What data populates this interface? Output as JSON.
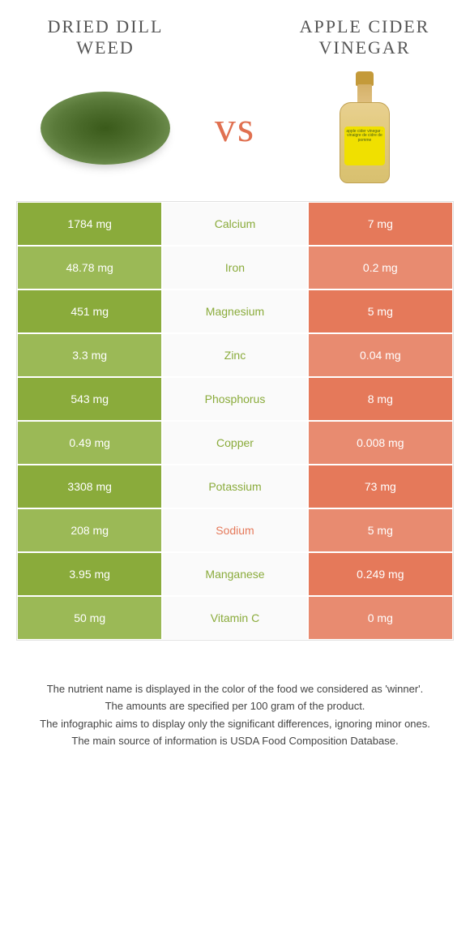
{
  "header": {
    "left_title": "Dried dill weed",
    "right_title": "Apple cider vinegar"
  },
  "vs_label": "vs",
  "bottle_label_text": "apple cider\nvinegar · vinaigre de\ncidre de pomme",
  "colors": {
    "left_odd": "#8aab3b",
    "left_even": "#9bb956",
    "right_odd": "#e5795a",
    "right_even": "#e88b70",
    "mid_bg": "#fafafa",
    "vs": "#e07050"
  },
  "table": {
    "rows": [
      {
        "left": "1784 mg",
        "nutrient": "Calcium",
        "right": "7 mg",
        "winner": "left"
      },
      {
        "left": "48.78 mg",
        "nutrient": "Iron",
        "right": "0.2 mg",
        "winner": "left"
      },
      {
        "left": "451 mg",
        "nutrient": "Magnesium",
        "right": "5 mg",
        "winner": "left"
      },
      {
        "left": "3.3 mg",
        "nutrient": "Zinc",
        "right": "0.04 mg",
        "winner": "left"
      },
      {
        "left": "543 mg",
        "nutrient": "Phosphorus",
        "right": "8 mg",
        "winner": "left"
      },
      {
        "left": "0.49 mg",
        "nutrient": "Copper",
        "right": "0.008 mg",
        "winner": "left"
      },
      {
        "left": "3308 mg",
        "nutrient": "Potassium",
        "right": "73 mg",
        "winner": "left"
      },
      {
        "left": "208 mg",
        "nutrient": "Sodium",
        "right": "5 mg",
        "winner": "right"
      },
      {
        "left": "3.95 mg",
        "nutrient": "Manganese",
        "right": "0.249 mg",
        "winner": "left"
      },
      {
        "left": "50 mg",
        "nutrient": "Vitamin C",
        "right": "0 mg",
        "winner": "left"
      }
    ]
  },
  "footer": {
    "line1": "The nutrient name is displayed in the color of the food we considered as 'winner'.",
    "line2": "The amounts are specified per 100 gram of the product.",
    "line3": "The infographic aims to display only the significant differences, ignoring minor ones.",
    "line4": "The main source of information is USDA Food Composition Database."
  }
}
